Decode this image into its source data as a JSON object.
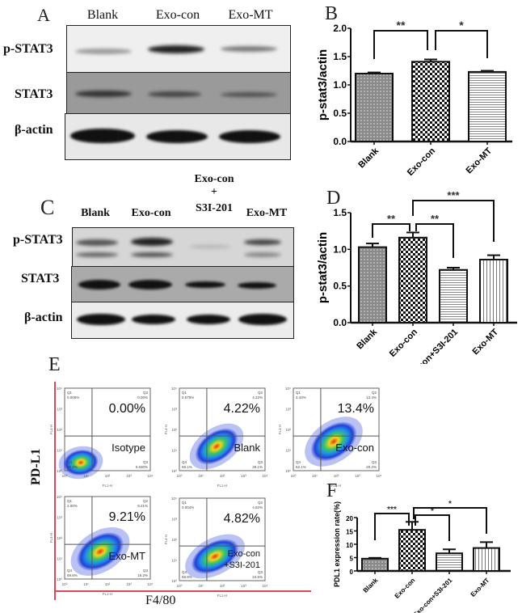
{
  "panelA": {
    "letter": "A",
    "lanes": [
      "Blank",
      "Exo-con",
      "Exo-MT"
    ],
    "rows": [
      "p-STAT3",
      "STAT3",
      "β-actin"
    ]
  },
  "panelB": {
    "letter": "B"
  },
  "panelC": {
    "letter": "C",
    "lanes": [
      "Blank",
      "Exo-con",
      "Exo-con",
      "+",
      "S3I-201",
      "Exo-MT"
    ],
    "rows": [
      "p-STAT3",
      "STAT3",
      "β-actin"
    ]
  },
  "panelD": {
    "letter": "D"
  },
  "panelE": {
    "letter": "E",
    "ylabel": "PD-L1",
    "xlabel": "F4/80",
    "plots": [
      {
        "percent": "0.00%",
        "label": "Isotype",
        "q1": "0.005%",
        "q2": "0.00%",
        "q3": "0.630%",
        "q4": "99.4%"
      },
      {
        "percent": "4.22%",
        "label": "Blank",
        "q1": "0.575%",
        "q2": "4.22%",
        "q3": "28.1%",
        "q4": "69.1%"
      },
      {
        "percent": "13.4%",
        "label": "Exo-con",
        "q1": "4.43%",
        "q2": "13.4%",
        "q3": "20.2%",
        "q4": "62.1%"
      },
      {
        "percent": "9.21%",
        "label": "Exo-MT",
        "q1": "2.00%",
        "q2": "9.21%",
        "q3": "19.2%",
        "q4": "69.6%"
      },
      {
        "percent": "4.82%",
        "label": "Exo-con",
        "label2": "+S3I-201",
        "q1": "0.004%",
        "q2": "4.82%",
        "q3": "24.5%",
        "q4": "69.8%"
      }
    ],
    "axis_small": "FL1-H",
    "yaxis_small": "FL4-H",
    "ticks": [
      "10⁰",
      "10¹",
      "10²",
      "10³",
      "10⁴"
    ]
  },
  "panelF": {
    "letter": "F"
  },
  "chart_data": [
    {
      "type": "bar",
      "title": "B",
      "categories": [
        "Blank",
        "Exo-con",
        "Exo-MT"
      ],
      "values": [
        1.2,
        1.41,
        1.23
      ],
      "errors": [
        0.02,
        0.04,
        0.02
      ],
      "xlabel": "",
      "ylabel": "p-stat3/actin",
      "ylim": [
        0,
        2.0
      ],
      "yticks": [
        "0.0",
        "0.5",
        "1.0",
        "1.5",
        "2.0"
      ],
      "significance": [
        {
          "from": "Blank",
          "to": "Exo-con",
          "label": "**"
        },
        {
          "from": "Exo-con",
          "to": "Exo-MT",
          "label": "*"
        }
      ]
    },
    {
      "type": "bar",
      "title": "D",
      "categories": [
        "Blank",
        "Exo-con",
        "Exo-con+S3I-201",
        "Exo-MT"
      ],
      "values": [
        1.03,
        1.16,
        0.72,
        0.86
      ],
      "errors": [
        0.05,
        0.07,
        0.03,
        0.06
      ],
      "xlabel": "",
      "ylabel": "p-stat3/actin",
      "ylim": [
        0,
        1.5
      ],
      "yticks": [
        "0.0",
        "0.5",
        "1.0",
        "1.5"
      ],
      "significance": [
        {
          "from": "Blank",
          "to": "Exo-con",
          "label": "**"
        },
        {
          "from": "Exo-con",
          "to": "Exo-con+S3I-201",
          "label": "**"
        },
        {
          "from": "Exo-con",
          "to": "Exo-MT",
          "label": "***"
        }
      ]
    },
    {
      "type": "bar",
      "title": "F",
      "categories": [
        "Blank",
        "Exo-con",
        "Exo-con+S3I-201",
        "Exo-MT"
      ],
      "values": [
        4.6,
        15.4,
        6.6,
        8.6
      ],
      "errors": [
        0.3,
        3.0,
        1.5,
        2.2
      ],
      "xlabel": "",
      "ylabel": "PDL1 expression rate(%)",
      "ylim": [
        0,
        20
      ],
      "yticks": [
        "0",
        "5",
        "10",
        "15",
        "20"
      ],
      "significance": [
        {
          "from": "Blank",
          "to": "Exo-con",
          "label": "***"
        },
        {
          "from": "Exo-con",
          "to": "Exo-con+S3I-201",
          "label": "*"
        },
        {
          "from": "Exo-con",
          "to": "Exo-MT",
          "label": "*"
        }
      ]
    }
  ]
}
